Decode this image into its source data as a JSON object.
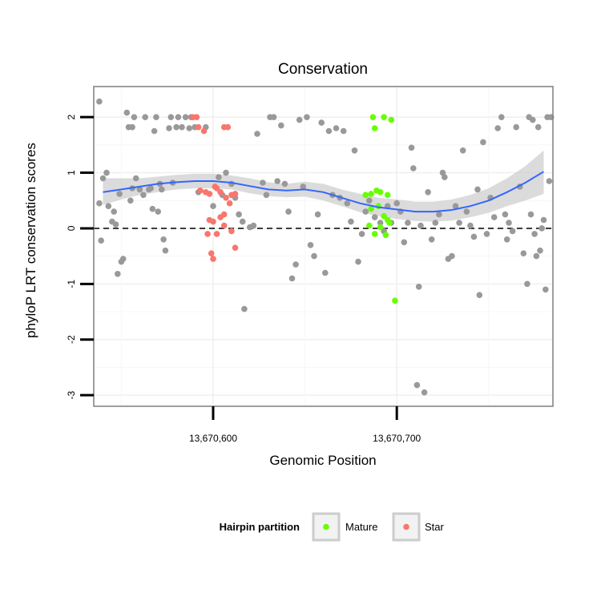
{
  "chart_data": {
    "type": "scatter",
    "title": "Conservation",
    "xlabel": "Genomic Position",
    "ylabel": "phyloP LRT conservation scores",
    "xlim": [
      13670535,
      13670785
    ],
    "ylim": [
      -3.2,
      2.55
    ],
    "x_ticks": [
      13670600,
      13670700
    ],
    "x_tick_labels": [
      "13,670,600",
      "13,670,700"
    ],
    "y_ticks": [
      -3,
      -2,
      -1,
      0,
      1,
      2
    ],
    "y_tick_labels": [
      "-3",
      "-2",
      "-1",
      "0",
      "1",
      "2"
    ],
    "reference_line": 0,
    "grid": true,
    "legend": {
      "title": "Hairpin partition",
      "position": "bottom",
      "entries": [
        {
          "label": "Mature",
          "color": "#66ff00"
        },
        {
          "label": "Star",
          "color": "#f8766d"
        }
      ]
    },
    "colors": {
      "background": "#ffffff",
      "other": "#999999",
      "mature": "#66ff00",
      "star": "#f8766d",
      "smooth_line": "#3366ff",
      "ribbon": "#cccccc"
    },
    "series": [
      {
        "group": "other",
        "points": [
          [
            13670538,
            2.28
          ],
          [
            13670538,
            0.45
          ],
          [
            13670540,
            0.9
          ],
          [
            13670542,
            1.0
          ],
          [
            13670543,
            0.4
          ],
          [
            13670539,
            -0.22
          ],
          [
            13670545,
            0.12
          ],
          [
            13670546,
            0.3
          ],
          [
            13670547,
            0.07
          ],
          [
            13670548,
            -0.82
          ],
          [
            13670550,
            -0.6
          ],
          [
            13670551,
            -0.55
          ],
          [
            13670553,
            2.08
          ],
          [
            13670554,
            1.82
          ],
          [
            13670556,
            1.82
          ],
          [
            13670557,
            2.0
          ],
          [
            13670549,
            0.62
          ],
          [
            13670555,
            0.5
          ],
          [
            13670556,
            0.72
          ],
          [
            13670558,
            0.9
          ],
          [
            13670560,
            0.7
          ],
          [
            13670562,
            0.6
          ],
          [
            13670563,
            2.0
          ],
          [
            13670565,
            0.7
          ],
          [
            13670566,
            0.72
          ],
          [
            13670567,
            0.35
          ],
          [
            13670568,
            1.75
          ],
          [
            13670569,
            2.0
          ],
          [
            13670570,
            0.3
          ],
          [
            13670571,
            0.8
          ],
          [
            13670572,
            0.7
          ],
          [
            13670573,
            -0.2
          ],
          [
            13670574,
            -0.4
          ],
          [
            13670576,
            1.8
          ],
          [
            13670577,
            2.0
          ],
          [
            13670578,
            0.82
          ],
          [
            13670580,
            1.82
          ],
          [
            13670581,
            2.0
          ],
          [
            13670583,
            1.82
          ],
          [
            13670585,
            2.0
          ],
          [
            13670587,
            1.8
          ],
          [
            13670588,
            2.0
          ],
          [
            13670590,
            1.82
          ],
          [
            13670592,
            0.65
          ],
          [
            13670596,
            1.82
          ],
          [
            13670600,
            0.4
          ],
          [
            13670603,
            0.92
          ],
          [
            13670605,
            0.6
          ],
          [
            13670607,
            1.0
          ],
          [
            13670610,
            0.8
          ],
          [
            13670612,
            0.55
          ],
          [
            13670614,
            0.25
          ],
          [
            13670616,
            0.12
          ],
          [
            13670617,
            -1.45
          ],
          [
            13670620,
            0.02
          ],
          [
            13670622,
            0.05
          ],
          [
            13670624,
            1.7
          ],
          [
            13670627,
            0.82
          ],
          [
            13670629,
            0.6
          ],
          [
            13670631,
            2.0
          ],
          [
            13670633,
            2.0
          ],
          [
            13670635,
            0.85
          ],
          [
            13670637,
            1.85
          ],
          [
            13670639,
            0.8
          ],
          [
            13670641,
            0.3
          ],
          [
            13670643,
            -0.9
          ],
          [
            13670645,
            -0.65
          ],
          [
            13670647,
            1.95
          ],
          [
            13670649,
            0.75
          ],
          [
            13670651,
            2.0
          ],
          [
            13670653,
            -0.3
          ],
          [
            13670655,
            -0.5
          ],
          [
            13670657,
            0.25
          ],
          [
            13670659,
            1.9
          ],
          [
            13670661,
            -0.8
          ],
          [
            13670663,
            1.75
          ],
          [
            13670665,
            0.6
          ],
          [
            13670667,
            1.8
          ],
          [
            13670669,
            0.55
          ],
          [
            13670671,
            1.75
          ],
          [
            13670673,
            0.45
          ],
          [
            13670675,
            0.12
          ],
          [
            13670677,
            1.4
          ],
          [
            13670679,
            -0.6
          ],
          [
            13670681,
            -0.1
          ],
          [
            13670683,
            0.3
          ],
          [
            13670685,
            0.5
          ],
          [
            13670688,
            0.2
          ],
          [
            13670691,
            0.1
          ],
          [
            13670693,
            -0.05
          ],
          [
            13670695,
            0.4
          ],
          [
            13670697,
            0.1
          ],
          [
            13670700,
            0.45
          ],
          [
            13670702,
            0.3
          ],
          [
            13670704,
            -0.25
          ],
          [
            13670706,
            0.1
          ],
          [
            13670708,
            1.45
          ],
          [
            13670709,
            1.08
          ],
          [
            13670711,
            -2.82
          ],
          [
            13670713,
            0.05
          ],
          [
            13670715,
            -2.95
          ],
          [
            13670712,
            -1.05
          ],
          [
            13670717,
            0.65
          ],
          [
            13670719,
            -0.2
          ],
          [
            13670721,
            0.1
          ],
          [
            13670723,
            0.25
          ],
          [
            13670725,
            1.0
          ],
          [
            13670726,
            0.92
          ],
          [
            13670728,
            -0.55
          ],
          [
            13670730,
            -0.5
          ],
          [
            13670732,
            0.4
          ],
          [
            13670734,
            0.1
          ],
          [
            13670736,
            1.4
          ],
          [
            13670738,
            0.3
          ],
          [
            13670740,
            0.05
          ],
          [
            13670742,
            -0.15
          ],
          [
            13670744,
            0.7
          ],
          [
            13670745,
            -1.2
          ],
          [
            13670747,
            1.55
          ],
          [
            13670749,
            -0.1
          ],
          [
            13670751,
            0.55
          ],
          [
            13670753,
            0.2
          ],
          [
            13670755,
            1.8
          ],
          [
            13670757,
            2.0
          ],
          [
            13670759,
            0.25
          ],
          [
            13670761,
            0.1
          ],
          [
            13670763,
            -0.05
          ],
          [
            13670765,
            1.82
          ],
          [
            13670767,
            0.75
          ],
          [
            13670769,
            -0.45
          ],
          [
            13670771,
            -1.0
          ],
          [
            13670773,
            0.25
          ],
          [
            13670775,
            -0.1
          ],
          [
            13670777,
            1.82
          ],
          [
            13670779,
            0.0
          ],
          [
            13670781,
            -1.1
          ],
          [
            13670783,
            0.85
          ],
          [
            13670772,
            2.0
          ],
          [
            13670774,
            1.95
          ],
          [
            13670776,
            -0.5
          ],
          [
            13670778,
            -0.4
          ],
          [
            13670780,
            0.15
          ],
          [
            13670782,
            2.0
          ],
          [
            13670784,
            2.0
          ],
          [
            13670760,
            -0.2
          ]
        ]
      },
      {
        "group": "star",
        "points": [
          [
            13670589,
            2.0
          ],
          [
            13670591,
            2.0
          ],
          [
            13670592,
            1.82
          ],
          [
            13670595,
            1.75
          ],
          [
            13670593,
            0.68
          ],
          [
            13670596,
            0.65
          ],
          [
            13670598,
            0.62
          ],
          [
            13670601,
            0.75
          ],
          [
            13670602,
            0.72
          ],
          [
            13670604,
            0.65
          ],
          [
            13670607,
            0.55
          ],
          [
            13670610,
            0.6
          ],
          [
            13670612,
            0.62
          ],
          [
            13670606,
            1.82
          ],
          [
            13670608,
            1.82
          ],
          [
            13670598,
            0.15
          ],
          [
            13670600,
            0.12
          ],
          [
            13670602,
            -0.1
          ],
          [
            13670604,
            0.2
          ],
          [
            13670606,
            0.25
          ],
          [
            13670609,
            0.45
          ],
          [
            13670597,
            -0.1
          ],
          [
            13670599,
            -0.45
          ],
          [
            13670600,
            -0.55
          ],
          [
            13670610,
            -0.05
          ],
          [
            13670612,
            -0.35
          ],
          [
            13670606,
            0.05
          ]
        ]
      },
      {
        "group": "mature",
        "points": [
          [
            13670687,
            2.0
          ],
          [
            13670693,
            2.0
          ],
          [
            13670697,
            1.95
          ],
          [
            13670688,
            1.8
          ],
          [
            13670683,
            0.6
          ],
          [
            13670686,
            0.62
          ],
          [
            13670689,
            0.68
          ],
          [
            13670691,
            0.65
          ],
          [
            13670695,
            0.6
          ],
          [
            13670686,
            0.35
          ],
          [
            13670690,
            0.4
          ],
          [
            13670693,
            0.22
          ],
          [
            13670695,
            0.15
          ],
          [
            13670685,
            0.05
          ],
          [
            13670688,
            -0.1
          ],
          [
            13670691,
            0.02
          ],
          [
            13670694,
            -0.12
          ],
          [
            13670696,
            0.1
          ],
          [
            13670699,
            -1.3
          ]
        ]
      }
    ],
    "smooth": {
      "name": "loess",
      "x": [
        13670540,
        13670550,
        13670560,
        13670570,
        13670580,
        13670590,
        13670600,
        13670610,
        13670620,
        13670630,
        13670640,
        13670650,
        13670660,
        13670670,
        13670680,
        13670690,
        13670700,
        13670710,
        13670720,
        13670730,
        13670740,
        13670750,
        13670760,
        13670770,
        13670780
      ],
      "y": [
        0.65,
        0.7,
        0.75,
        0.8,
        0.83,
        0.85,
        0.85,
        0.82,
        0.76,
        0.7,
        0.68,
        0.7,
        0.65,
        0.55,
        0.45,
        0.38,
        0.34,
        0.3,
        0.3,
        0.33,
        0.4,
        0.5,
        0.65,
        0.82,
        1.02
      ],
      "lower": [
        0.42,
        0.52,
        0.6,
        0.65,
        0.7,
        0.72,
        0.72,
        0.7,
        0.63,
        0.58,
        0.56,
        0.57,
        0.5,
        0.4,
        0.29,
        0.22,
        0.17,
        0.13,
        0.12,
        0.14,
        0.2,
        0.28,
        0.4,
        0.5,
        0.62
      ],
      "upper": [
        0.9,
        0.9,
        0.9,
        0.93,
        0.96,
        0.98,
        0.98,
        0.95,
        0.9,
        0.83,
        0.8,
        0.84,
        0.8,
        0.7,
        0.62,
        0.55,
        0.52,
        0.48,
        0.48,
        0.52,
        0.6,
        0.72,
        0.9,
        1.12,
        1.4
      ]
    }
  }
}
